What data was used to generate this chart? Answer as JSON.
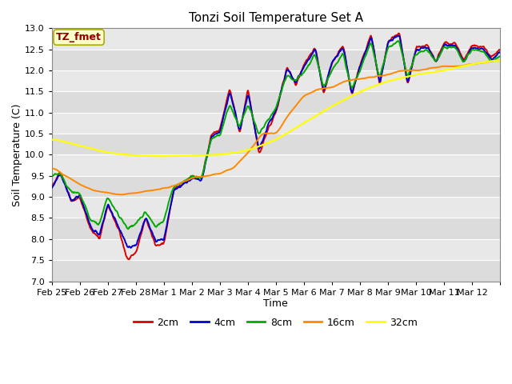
{
  "title": "Tonzi Soil Temperature Set A",
  "xlabel": "Time",
  "ylabel": "Soil Temperature (C)",
  "ylim": [
    7.0,
    13.0
  ],
  "yticks": [
    7.0,
    7.5,
    8.0,
    8.5,
    9.0,
    9.5,
    10.0,
    10.5,
    11.0,
    11.5,
    12.0,
    12.5,
    13.0
  ],
  "annotation": "TZ_fmet",
  "annotation_color": "#8B0000",
  "annotation_bg": "#FFFFC8",
  "annotation_border": "#AAAA00",
  "plot_bg": "#E8E8E8",
  "fig_bg": "#FFFFFF",
  "legend_labels": [
    "2cm",
    "4cm",
    "8cm",
    "16cm",
    "32cm"
  ],
  "legend_colors": [
    "#DD0000",
    "#0000CC",
    "#00AA00",
    "#FF8800",
    "#FFFF00"
  ],
  "xtick_labels": [
    "Feb 25",
    "Feb 26",
    "Feb 27",
    "Feb 28",
    "Mar 1",
    "Mar 2",
    "Mar 3",
    "Mar 4",
    "Mar 5",
    "Mar 6",
    "Mar 7",
    "Mar 8",
    "Mar 9",
    "Mar 10",
    "Mar 11",
    "Mar 12"
  ],
  "n_days": 16
}
